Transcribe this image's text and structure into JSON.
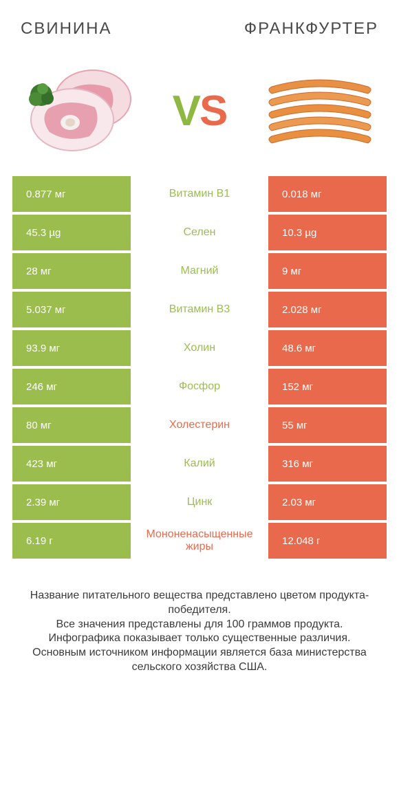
{
  "header": {
    "left": "СВИНИНА",
    "right": "ФРАНКФУРТЕР",
    "vs_v": "V",
    "vs_s": "S"
  },
  "colors": {
    "left": "#9bbd4e",
    "right": "#e8694b",
    "mid_bg": "#ffffff",
    "text_dark": "#4a4a4a"
  },
  "rows": [
    {
      "label": "Витамин B1",
      "left": "0.877 мг",
      "right": "0.018 мг",
      "winner": "left"
    },
    {
      "label": "Селен",
      "left": "45.3 µg",
      "right": "10.3 µg",
      "winner": "left"
    },
    {
      "label": "Магний",
      "left": "28 мг",
      "right": "9 мг",
      "winner": "left"
    },
    {
      "label": "Витамин B3",
      "left": "5.037 мг",
      "right": "2.028 мг",
      "winner": "left"
    },
    {
      "label": "Холин",
      "left": "93.9 мг",
      "right": "48.6 мг",
      "winner": "left"
    },
    {
      "label": "Фосфор",
      "left": "246 мг",
      "right": "152 мг",
      "winner": "left"
    },
    {
      "label": "Холестерин",
      "left": "80 мг",
      "right": "55 мг",
      "winner": "right"
    },
    {
      "label": "Калий",
      "left": "423 мг",
      "right": "316 мг",
      "winner": "left"
    },
    {
      "label": "Цинк",
      "left": "2.39 мг",
      "right": "2.03 мг",
      "winner": "left"
    },
    {
      "label": "Мононенасыщенные жиры",
      "left": "6.19 г",
      "right": "12.048 г",
      "winner": "right"
    }
  ],
  "footer": {
    "line1": "Название питательного вещества представлено цветом продукта-победителя.",
    "line2": "Все значения представлены для 100 граммов продукта.",
    "line3": "Инфографика показывает только существенные различия.",
    "line4": "Основным источником информации является база министерства сельского хозяйства США."
  }
}
